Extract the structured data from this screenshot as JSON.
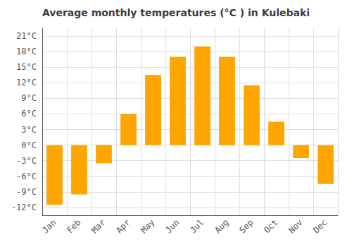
{
  "chart_data": {
    "type": "bar",
    "title": "Average monthly temperatures (°C ) in Kulebaki",
    "categories": [
      "Jan",
      "Feb",
      "Mar",
      "Apr",
      "May",
      "Jun",
      "Jul",
      "Aug",
      "Sep",
      "Oct",
      "Nov",
      "Dec"
    ],
    "values": [
      -11.5,
      -9.5,
      -3.5,
      6.0,
      13.5,
      17.0,
      19.0,
      17.0,
      11.5,
      4.5,
      -2.5,
      -7.5
    ],
    "color": "#FFA500",
    "ylim": [
      -13.5,
      22.5
    ],
    "yticks": [
      {
        "value": -12,
        "label": "-12°C"
      },
      {
        "value": -9,
        "label": "-9°C"
      },
      {
        "value": -6,
        "label": "-6°C"
      },
      {
        "value": -3,
        "label": "-3°C"
      },
      {
        "value": 0,
        "label": "0°C"
      },
      {
        "value": 3,
        "label": "3°C"
      },
      {
        "value": 6,
        "label": "6°C"
      },
      {
        "value": 9,
        "label": "9°C"
      },
      {
        "value": 12,
        "label": "12°C"
      },
      {
        "value": 15,
        "label": "15°C"
      },
      {
        "value": 18,
        "label": "18°C"
      },
      {
        "value": 21,
        "label": "21°C"
      }
    ],
    "grid": true
  }
}
